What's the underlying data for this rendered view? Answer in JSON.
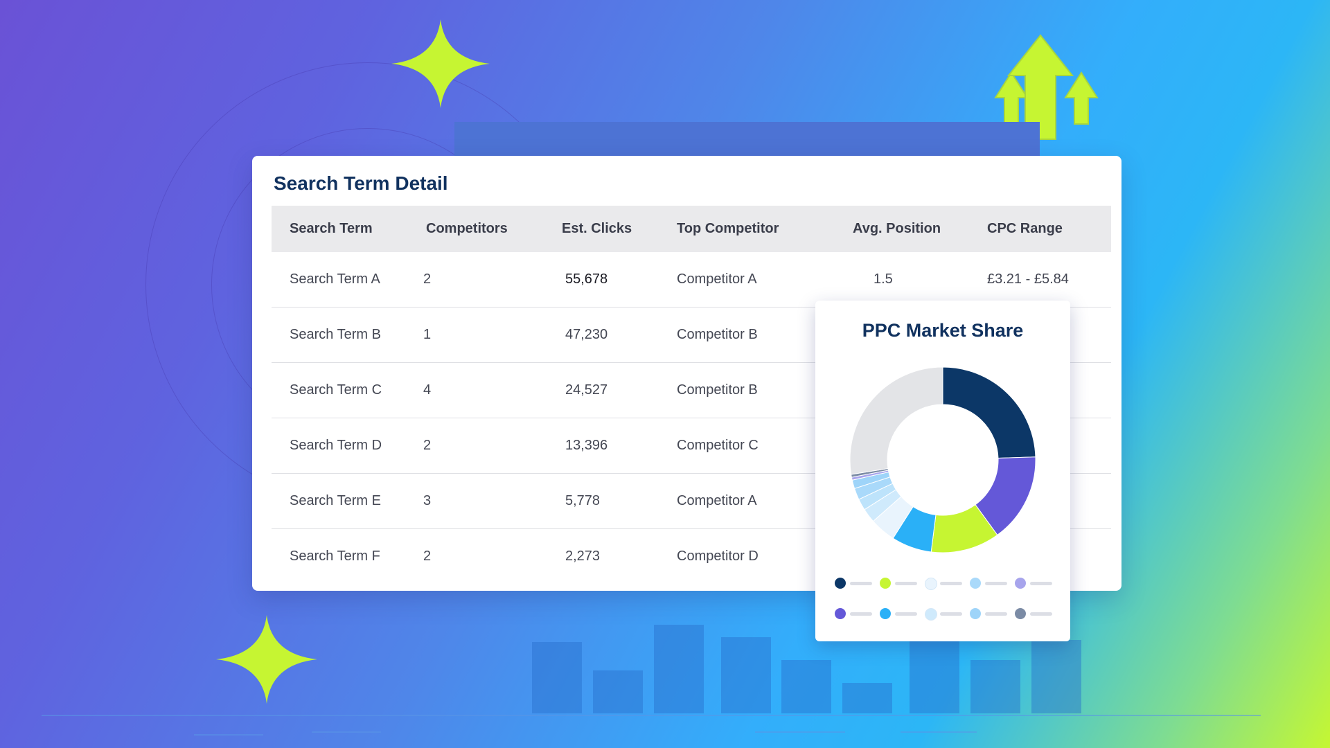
{
  "table_card": {
    "title": "Search Term Detail",
    "columns": [
      "Search Term",
      "Competitors",
      "Est. Clicks",
      "Top Competitor",
      "Avg. Position",
      "CPC Range"
    ],
    "rows": [
      {
        "term": "Search Term A",
        "competitors": "2",
        "clicks": "55,678",
        "top": "Competitor A",
        "position": "1.5",
        "cpc": "£3.21 - £5.84"
      },
      {
        "term": "Search Term B",
        "competitors": "1",
        "clicks": "47,230",
        "top": "Competitor B",
        "position": "",
        "cpc": ""
      },
      {
        "term": "Search Term C",
        "competitors": "4",
        "clicks": "24,527",
        "top": "Competitor B",
        "position": "",
        "cpc": ""
      },
      {
        "term": "Search Term D",
        "competitors": "2",
        "clicks": "13,396",
        "top": "Competitor C",
        "position": "",
        "cpc": ""
      },
      {
        "term": "Search Term E",
        "competitors": "3",
        "clicks": "5,778",
        "top": "Competitor A",
        "position": "",
        "cpc": ""
      },
      {
        "term": "Search Term F",
        "competitors": "2",
        "clicks": "2,273",
        "top": "Competitor D",
        "position": "",
        "cpc": ""
      }
    ]
  },
  "share_card": {
    "title": "PPC Market Share"
  },
  "chart_data": {
    "type": "pie",
    "title": "PPC Market Share",
    "slices": [
      {
        "value": 24.5,
        "color": "#0c3767"
      },
      {
        "value": 15.5,
        "color": "#6458d8"
      },
      {
        "value": 12.0,
        "color": "#c6f532"
      },
      {
        "value": 7.0,
        "color": "#2ab0f7"
      },
      {
        "value": 4.5,
        "color": "#e9f4fd"
      },
      {
        "value": 2.5,
        "color": "#cfeafc"
      },
      {
        "value": 2.0,
        "color": "#bde3fb"
      },
      {
        "value": 2.0,
        "color": "#a9d9fa"
      },
      {
        "value": 1.5,
        "color": "#9ed4f9"
      },
      {
        "value": 0.5,
        "color": "#a7a4ec"
      },
      {
        "value": 0.5,
        "color": "#7b8ba5"
      },
      {
        "value": 27.5,
        "color": "#e3e4e7"
      }
    ],
    "legend_colors": [
      "#0c3767",
      "#c6f532",
      "#e9f4fd",
      "#a9d9fa",
      "#a7a4ec",
      "#6458d8",
      "#2ab0f7",
      "#cfeafc",
      "#9ed4f9",
      "#7b8ba5"
    ]
  },
  "decor": {
    "accent_color": "#c6f532",
    "bars": [
      0.47,
      0.28,
      0.58,
      0.5,
      0.35,
      0.2,
      0.55,
      0.35,
      0.48
    ]
  }
}
